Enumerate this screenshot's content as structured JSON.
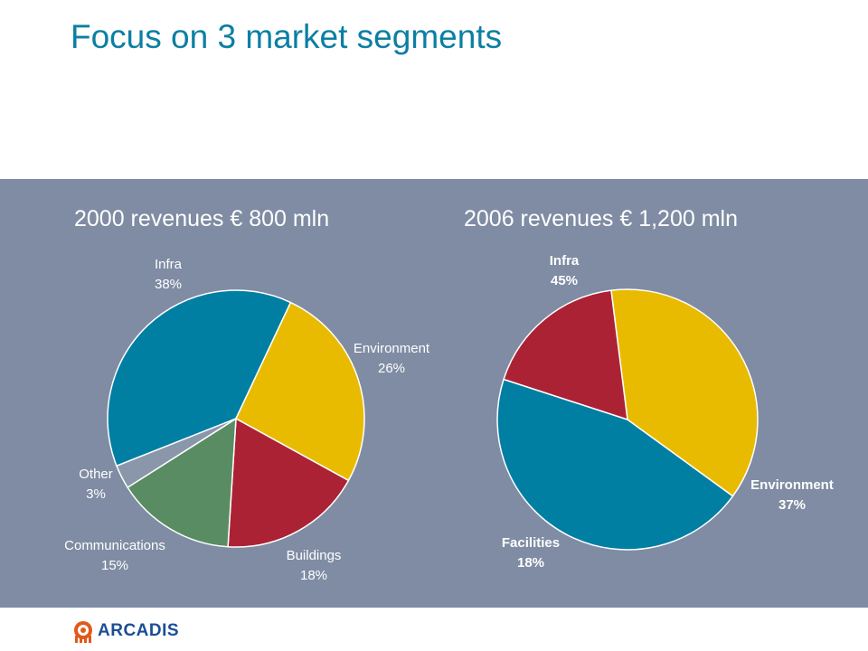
{
  "page": {
    "title": "Focus on 3 market segments",
    "logo_text": "ARCADIS"
  },
  "colors": {
    "title": "#0b7fa3",
    "panel": "#7f8ca3",
    "Infra": "#007fa3",
    "Environment": "#e8bb00",
    "Buildings": "#ac2235",
    "Facilities": "#ac2235",
    "Communications": "#5a8c64",
    "Other": "#8a97ab"
  },
  "chart_data": [
    {
      "type": "pie",
      "title": "2000 revenues € 800 mln",
      "slices": [
        {
          "label": "Infra",
          "value": 38,
          "value_text": "38%"
        },
        {
          "label": "Environment",
          "value": 26,
          "value_text": "26%"
        },
        {
          "label": "Buildings",
          "value": 18,
          "value_text": "18%"
        },
        {
          "label": "Communications",
          "value": 15,
          "value_text": "15%"
        },
        {
          "label": "Other",
          "value": 3,
          "value_text": "3%"
        }
      ]
    },
    {
      "type": "pie",
      "title": "2006 revenues € 1,200 mln",
      "slices": [
        {
          "label": "Infra",
          "value": 45,
          "value_text": "45%"
        },
        {
          "label": "Environment",
          "value": 37,
          "value_text": "37%"
        },
        {
          "label": "Facilities",
          "value": 18,
          "value_text": "18%"
        }
      ]
    }
  ]
}
